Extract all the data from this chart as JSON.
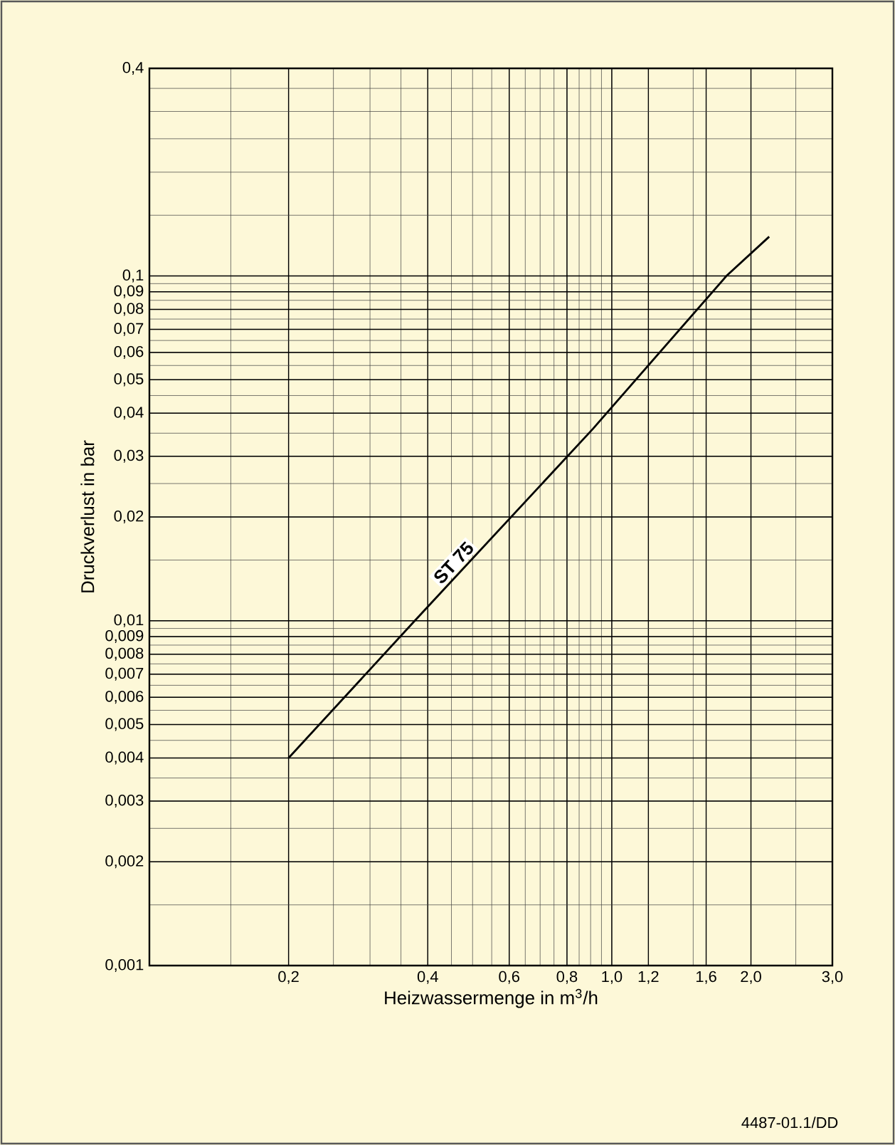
{
  "chart_data": {
    "type": "line",
    "xlabel": "Heizwassermenge in m$^{3}$/h",
    "ylabel": "Druckverlust in bar",
    "log": "xy",
    "grid": true,
    "xlim": [
      0.1,
      3.0
    ],
    "ylim": [
      0.001,
      0.4
    ],
    "xticks": [
      {
        "value": 0.2,
        "label": "0,2"
      },
      {
        "value": 0.4,
        "label": "0,4"
      },
      {
        "value": 0.6,
        "label": "0,6"
      },
      {
        "value": 0.8,
        "label": "0,8"
      },
      {
        "value": 1.0,
        "label": "1,0"
      },
      {
        "value": 1.2,
        "label": "1,2"
      },
      {
        "value": 1.6,
        "label": "1,6"
      },
      {
        "value": 2.0,
        "label": "2,0"
      },
      {
        "value": 3.0,
        "label": "3,0"
      }
    ],
    "yticks": [
      {
        "value": 0.001,
        "label": "0,001"
      },
      {
        "value": 0.002,
        "label": "0,002"
      },
      {
        "value": 0.003,
        "label": "0,003"
      },
      {
        "value": 0.004,
        "label": "0,004"
      },
      {
        "value": 0.005,
        "label": "0,005"
      },
      {
        "value": 0.006,
        "label": "0,006"
      },
      {
        "value": 0.007,
        "label": "0,007"
      },
      {
        "value": 0.008,
        "label": "0,008"
      },
      {
        "value": 0.009,
        "label": "0,009"
      },
      {
        "value": 0.01,
        "label": "0,01"
      },
      {
        "value": 0.02,
        "label": "0,02"
      },
      {
        "value": 0.03,
        "label": "0,03"
      },
      {
        "value": 0.04,
        "label": "0,04"
      },
      {
        "value": 0.05,
        "label": "0,05"
      },
      {
        "value": 0.06,
        "label": "0,06"
      },
      {
        "value": 0.07,
        "label": "0,07"
      },
      {
        "value": 0.08,
        "label": "0,08"
      },
      {
        "value": 0.09,
        "label": "0,09"
      },
      {
        "value": 0.1,
        "label": "0,1"
      },
      {
        "value": 0.4,
        "label": "0,4"
      }
    ],
    "series": [
      {
        "name": "ST 75",
        "color": "#000000",
        "x": [
          0.2,
          0.375,
          0.91,
          1.77,
          2.19
        ],
        "values": [
          0.004,
          0.01,
          0.036,
          0.1,
          0.13
        ]
      }
    ],
    "annotations": [
      "4487-01.1/DD"
    ]
  }
}
